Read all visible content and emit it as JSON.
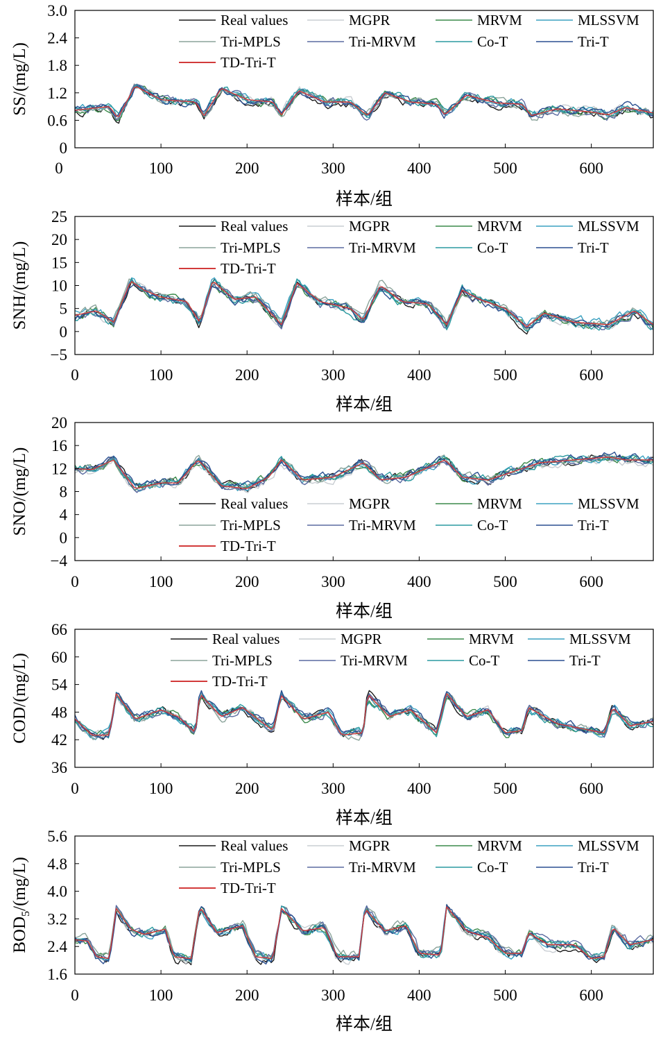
{
  "figure": {
    "background": "#ffffff"
  },
  "series_styles": [
    {
      "name": "Real values",
      "color": "#1a1a1a"
    },
    {
      "name": "MGPR",
      "color": "#c8cdd2"
    },
    {
      "name": "MRVM",
      "color": "#3a8a4a"
    },
    {
      "name": "MLSSVM",
      "color": "#3aa0c0"
    },
    {
      "name": "Tri-MPLS",
      "color": "#8aa39a"
    },
    {
      "name": "Tri-MRVM",
      "color": "#5a6aa0"
    },
    {
      "name": "Co-T",
      "color": "#2a9aa0"
    },
    {
      "name": "Tri-T",
      "color": "#2a4f90"
    },
    {
      "name": "TD-Tri-T",
      "color": "#d23a3a"
    }
  ],
  "chart_data": [
    {
      "type": "line",
      "ylabel": "SS/(mg/L)",
      "xlabel": "样本/组",
      "xlim": [
        0,
        672
      ],
      "ylim": [
        0,
        3.0
      ],
      "yticks": [
        "0",
        "0.6",
        "1.2",
        "1.8",
        "2.4",
        "3.0"
      ],
      "xticks": [
        "100",
        "200",
        "300",
        "400",
        "500",
        "600"
      ],
      "legend_position": "top",
      "legend": [
        "Real values",
        "MGPR",
        "MRVM",
        "MLSSVM",
        "Tri-MPLS",
        "Tri-MRVM",
        "Co-T",
        "Tri-T",
        "TD-Tri-T"
      ],
      "keypoints": [
        [
          0,
          0.82
        ],
        [
          40,
          0.9
        ],
        [
          50,
          0.65
        ],
        [
          70,
          1.35
        ],
        [
          100,
          1.05
        ],
        [
          140,
          1.0
        ],
        [
          150,
          0.7
        ],
        [
          170,
          1.3
        ],
        [
          200,
          1.05
        ],
        [
          230,
          1.0
        ],
        [
          240,
          0.72
        ],
        [
          260,
          1.25
        ],
        [
          290,
          1.0
        ],
        [
          320,
          1.0
        ],
        [
          340,
          0.7
        ],
        [
          360,
          1.2
        ],
        [
          390,
          1.0
        ],
        [
          420,
          0.95
        ],
        [
          430,
          0.72
        ],
        [
          455,
          1.15
        ],
        [
          490,
          0.98
        ],
        [
          520,
          0.95
        ],
        [
          530,
          0.7
        ],
        [
          560,
          0.85
        ],
        [
          600,
          0.78
        ],
        [
          620,
          0.72
        ],
        [
          640,
          0.88
        ],
        [
          672,
          0.76
        ]
      ]
    },
    {
      "type": "line",
      "ylabel": "SNH/(mg/L)",
      "xlabel": "样本/组",
      "xlim": [
        0,
        672
      ],
      "ylim": [
        -5,
        25
      ],
      "yticks": [
        "−5",
        "0",
        "5",
        "10",
        "15",
        "20",
        "25"
      ],
      "xticks": [
        "0",
        "100",
        "200",
        "300",
        "400",
        "500",
        "600"
      ],
      "legend_position": "top",
      "legend": [
        "Real values",
        "MGPR",
        "MRVM",
        "MLSSVM",
        "Tri-MPLS",
        "Tri-MRVM",
        "Co-T",
        "Tri-T",
        "TD-Tri-T"
      ],
      "keypoints": [
        [
          0,
          3.5
        ],
        [
          25,
          4.5
        ],
        [
          45,
          2
        ],
        [
          65,
          11
        ],
        [
          80,
          9
        ],
        [
          100,
          7.5
        ],
        [
          130,
          6.5
        ],
        [
          145,
          2
        ],
        [
          160,
          11
        ],
        [
          185,
          7
        ],
        [
          210,
          7.5
        ],
        [
          240,
          1.5
        ],
        [
          258,
          10.5
        ],
        [
          285,
          6.5
        ],
        [
          320,
          5
        ],
        [
          335,
          2.5
        ],
        [
          355,
          10
        ],
        [
          380,
          6.5
        ],
        [
          410,
          6
        ],
        [
          432,
          1.5
        ],
        [
          450,
          9
        ],
        [
          470,
          7
        ],
        [
          500,
          5
        ],
        [
          525,
          1
        ],
        [
          545,
          4
        ],
        [
          580,
          2
        ],
        [
          620,
          1.5
        ],
        [
          650,
          4.5
        ],
        [
          672,
          1.5
        ]
      ]
    },
    {
      "type": "line",
      "ylabel": "SNO/(mg/L)",
      "xlabel": "样本/组",
      "xlim": [
        0,
        672
      ],
      "ylim": [
        -4,
        20
      ],
      "yticks": [
        "−4",
        "0",
        "4",
        "8",
        "12",
        "16",
        "20"
      ],
      "xticks": [
        "0",
        "100",
        "200",
        "300",
        "400",
        "500",
        "600"
      ],
      "legend_position": "bottom",
      "legend": [
        "Real values",
        "MGPR",
        "MRVM",
        "MLSSVM",
        "Tri-MPLS",
        "Tri-MRVM",
        "Co-T",
        "Tri-T",
        "TD-Tri-T"
      ],
      "keypoints": [
        [
          0,
          12
        ],
        [
          20,
          11.8
        ],
        [
          45,
          13.5
        ],
        [
          70,
          8.5
        ],
        [
          100,
          9.5
        ],
        [
          120,
          9.5
        ],
        [
          143,
          13.5
        ],
        [
          170,
          9
        ],
        [
          200,
          8.5
        ],
        [
          225,
          10.5
        ],
        [
          240,
          13.5
        ],
        [
          265,
          10
        ],
        [
          300,
          10.5
        ],
        [
          335,
          13
        ],
        [
          355,
          10
        ],
        [
          385,
          10.5
        ],
        [
          430,
          13.5
        ],
        [
          450,
          10.5
        ],
        [
          480,
          10
        ],
        [
          500,
          11
        ],
        [
          540,
          13
        ],
        [
          580,
          13.5
        ],
        [
          620,
          14
        ],
        [
          640,
          13.5
        ],
        [
          672,
          13.5
        ]
      ]
    },
    {
      "type": "line",
      "ylabel": "COD/(mg/L)",
      "xlabel": "样本/组",
      "xlim": [
        0,
        672
      ],
      "ylim": [
        36,
        66
      ],
      "yticks": [
        "36",
        "42",
        "48",
        "54",
        "60",
        "66"
      ],
      "xticks": [
        "0",
        "100",
        "200",
        "300",
        "400",
        "500",
        "600"
      ],
      "legend_position": "top",
      "legend": [
        "Real values",
        "MGPR",
        "MRVM",
        "MLSSVM",
        "Tri-MPLS",
        "Tri-MRVM",
        "Co-T",
        "Tri-T",
        "TD-Tri-T"
      ],
      "keypoints": [
        [
          0,
          46.5
        ],
        [
          20,
          43
        ],
        [
          40,
          43
        ],
        [
          48,
          52
        ],
        [
          70,
          46.5
        ],
        [
          100,
          48.5
        ],
        [
          120,
          47
        ],
        [
          140,
          43.5
        ],
        [
          145,
          52
        ],
        [
          170,
          47
        ],
        [
          195,
          49
        ],
        [
          230,
          44
        ],
        [
          240,
          51.5
        ],
        [
          265,
          46.5
        ],
        [
          295,
          48
        ],
        [
          310,
          43
        ],
        [
          335,
          43.5
        ],
        [
          340,
          52
        ],
        [
          365,
          47
        ],
        [
          390,
          48.5
        ],
        [
          420,
          43.5
        ],
        [
          432,
          52
        ],
        [
          455,
          47
        ],
        [
          480,
          48.5
        ],
        [
          500,
          43.5
        ],
        [
          520,
          44
        ],
        [
          527,
          49
        ],
        [
          560,
          45.5
        ],
        [
          600,
          44
        ],
        [
          615,
          43.5
        ],
        [
          625,
          49
        ],
        [
          645,
          45
        ],
        [
          672,
          46
        ]
      ]
    },
    {
      "type": "line",
      "ylabel": "BOD5/(mg/L)",
      "ylabel_main": "BOD",
      "ylabel_sub": "5",
      "ylabel_tail": "/(mg/L)",
      "xlabel": "样本/组",
      "xlim": [
        0,
        672
      ],
      "ylim": [
        1.6,
        5.6
      ],
      "yticks": [
        "1.6",
        "2.4",
        "3.2",
        "4.0",
        "4.8",
        "5.6"
      ],
      "xticks": [
        "0",
        "100",
        "200",
        "300",
        "400",
        "500",
        "600"
      ],
      "legend_position": "top",
      "legend": [
        "Real values",
        "MGPR",
        "MRVM",
        "MLSSVM",
        "Tri-MPLS",
        "Tri-MRVM",
        "Co-T",
        "Tri-T",
        "TD-Tri-T"
      ],
      "keypoints": [
        [
          0,
          2.6
        ],
        [
          15,
          2.55
        ],
        [
          25,
          2.1
        ],
        [
          40,
          2.05
        ],
        [
          48,
          3.5
        ],
        [
          65,
          2.9
        ],
        [
          80,
          2.75
        ],
        [
          105,
          2.9
        ],
        [
          115,
          2.1
        ],
        [
          135,
          2.05
        ],
        [
          145,
          3.55
        ],
        [
          165,
          2.8
        ],
        [
          195,
          3.0
        ],
        [
          210,
          2.1
        ],
        [
          230,
          2.05
        ],
        [
          240,
          3.5
        ],
        [
          265,
          2.85
        ],
        [
          290,
          2.95
        ],
        [
          305,
          2.1
        ],
        [
          330,
          2.1
        ],
        [
          337,
          3.5
        ],
        [
          360,
          2.85
        ],
        [
          385,
          3.0
        ],
        [
          400,
          2.2
        ],
        [
          425,
          2.15
        ],
        [
          432,
          3.55
        ],
        [
          455,
          2.85
        ],
        [
          480,
          2.65
        ],
        [
          500,
          2.2
        ],
        [
          520,
          2.2
        ],
        [
          527,
          2.8
        ],
        [
          550,
          2.45
        ],
        [
          580,
          2.45
        ],
        [
          600,
          2.05
        ],
        [
          615,
          2.1
        ],
        [
          625,
          2.95
        ],
        [
          645,
          2.45
        ],
        [
          672,
          2.6
        ]
      ]
    }
  ]
}
